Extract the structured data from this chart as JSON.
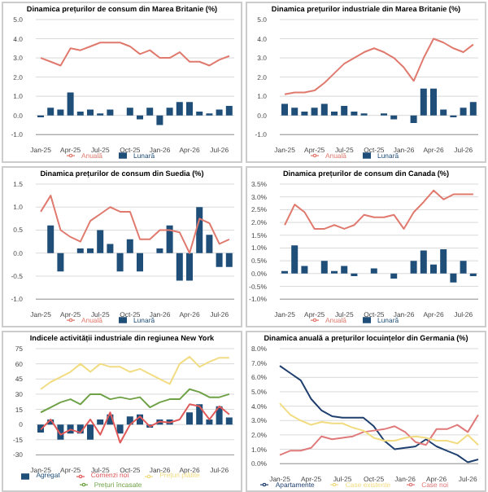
{
  "chart_data": [
    {
      "type": "bar",
      "title": "Dinamica prețurilor de consum din Marea Britanie (%)",
      "categories": [
        "Jan-25",
        null,
        null,
        "Apr-25",
        null,
        null,
        "Jul-25",
        null,
        null,
        "Oct-25",
        null,
        null,
        "Jan-26",
        null,
        null,
        "Apr-26",
        null,
        null,
        "Jul-26",
        null
      ],
      "series": [
        {
          "name": "Lunară",
          "color": "#1f4e79",
          "values": [
            -0.1,
            0.4,
            0.3,
            1.2,
            0.2,
            0.3,
            0.1,
            0.3,
            0.0,
            0.4,
            -0.2,
            0.4,
            -0.5,
            0.4,
            0.7,
            0.7,
            0.2,
            0.1,
            0.3,
            0.5
          ]
        },
        {
          "name": "Anuală",
          "type": "line",
          "color": "#e07a6e",
          "values": [
            3.0,
            2.8,
            2.6,
            3.5,
            3.4,
            3.6,
            3.8,
            3.8,
            3.8,
            3.6,
            3.2,
            3.4,
            3.0,
            3.0,
            3.3,
            2.8,
            2.8,
            2.6,
            2.9,
            3.1
          ]
        }
      ],
      "ylim": [
        -1,
        5
      ],
      "yticks": [
        {
          "value": -1,
          "label": "-1.0"
        },
        {
          "value": 0,
          "label": "0.0"
        },
        {
          "value": 1,
          "label": "1.0"
        },
        {
          "value": 2,
          "label": "2.0"
        },
        {
          "value": 3,
          "label": "3.0"
        },
        {
          "value": 4,
          "label": "4.0"
        },
        {
          "value": 5,
          "label": "5.0"
        }
      ],
      "grid": "y",
      "legend": "bottom",
      "marker": "none"
    },
    {
      "type": "bar",
      "title": "Dinamica prețurilor industriale din Marea Britanie (%)",
      "categories": [
        "Jan-25",
        null,
        null,
        "Apr-25",
        null,
        null,
        "Jul-25",
        null,
        null,
        "Oct-25",
        null,
        null,
        "Jan-26",
        null,
        null,
        "Apr-26",
        null,
        null,
        "Jul-26",
        null
      ],
      "series": [
        {
          "name": "Lunară",
          "color": "#1f4e79",
          "values": [
            0.6,
            0.4,
            0.2,
            0.4,
            0.6,
            0.2,
            0.5,
            0.2,
            0.1,
            0.0,
            0.1,
            -0.2,
            0.0,
            -0.4,
            1.4,
            1.4,
            0.3,
            -0.1,
            0.4,
            0.7
          ]
        },
        {
          "name": "Anuală",
          "type": "line",
          "color": "#e07a6e",
          "values": [
            1.1,
            1.2,
            1.2,
            1.3,
            1.7,
            2.2,
            2.7,
            3.0,
            3.3,
            3.5,
            3.3,
            3.0,
            2.5,
            1.8,
            3.0,
            4.0,
            3.8,
            3.5,
            3.3,
            3.7
          ]
        }
      ],
      "ylim": [
        -1,
        5
      ],
      "yticks": [
        {
          "value": -1,
          "label": "-1.0"
        },
        {
          "value": 0,
          "label": "0.0"
        },
        {
          "value": 1,
          "label": "1.0"
        },
        {
          "value": 2,
          "label": "2.0"
        },
        {
          "value": 3,
          "label": "3.0"
        },
        {
          "value": 4,
          "label": "4.0"
        },
        {
          "value": 5,
          "label": "5.0"
        }
      ],
      "grid": "y",
      "legend": "bottom",
      "marker": "none"
    },
    {
      "type": "bar",
      "title": "Dinamica prețurilor de consum din Suedia (%)",
      "categories": [
        "Jan-25",
        null,
        null,
        "Apr-25",
        null,
        null,
        "Jul-25",
        null,
        null,
        "Oct-25",
        null,
        null,
        "Jan-26",
        null,
        null,
        "Apr-26",
        null,
        null,
        "Jul-26",
        null
      ],
      "series": [
        {
          "name": "Lunară",
          "color": "#1f4e79",
          "values": [
            0.0,
            0.6,
            -0.4,
            0.0,
            0.1,
            0.1,
            0.5,
            0.2,
            -0.4,
            0.3,
            -0.4,
            0.0,
            0.1,
            0.6,
            -0.6,
            -0.6,
            1.0,
            0.4,
            -0.3,
            -0.3
          ]
        },
        {
          "name": "Anuală",
          "type": "line",
          "color": "#e07a6e",
          "values": [
            0.9,
            1.25,
            0.5,
            0.35,
            0.25,
            0.7,
            0.85,
            1.0,
            0.9,
            0.9,
            0.3,
            0.3,
            0.5,
            0.5,
            0.45,
            0.0,
            0.75,
            0.65,
            0.2,
            0.3
          ]
        }
      ],
      "ylim": [
        -1,
        1.5
      ],
      "yticks": [
        {
          "value": -1,
          "label": "-1.0"
        },
        {
          "value": -0.5,
          "label": "-0.5"
        },
        {
          "value": 0,
          "label": "0.0"
        },
        {
          "value": 0.5,
          "label": "0.5"
        },
        {
          "value": 1,
          "label": "1.0"
        },
        {
          "value": 1.5,
          "label": "1.5"
        }
      ],
      "grid": "y",
      "legend": "bottom",
      "marker": "none"
    },
    {
      "type": "bar",
      "title": "Dinamica prețurilor de consum din Canada (%)",
      "categories": [
        "Jan-25",
        null,
        null,
        "Apr-25",
        null,
        null,
        "Jul-25",
        null,
        null,
        "Oct-25",
        null,
        null,
        "Jan-26",
        null,
        null,
        "Apr-26",
        null,
        null,
        "Jul-26",
        null
      ],
      "series": [
        {
          "name": "Lunară",
          "color": "#1f4e79",
          "values": [
            0.1,
            1.1,
            0.3,
            0.0,
            0.5,
            0.1,
            0.3,
            -0.1,
            0.0,
            0.2,
            0.0,
            -0.2,
            0.0,
            0.5,
            0.9,
            0.35,
            0.95,
            -0.35,
            0.5,
            -0.1
          ]
        },
        {
          "name": "Anuală",
          "type": "line",
          "color": "#e07a6e",
          "values": [
            1.9,
            2.7,
            2.4,
            1.75,
            1.75,
            1.9,
            1.75,
            1.9,
            2.3,
            2.2,
            2.2,
            2.3,
            1.75,
            2.4,
            2.8,
            3.25,
            2.9,
            3.1,
            3.1,
            3.1
          ]
        }
      ],
      "ylim": [
        -1,
        3.5
      ],
      "yticks": [
        {
          "value": -1,
          "label": "-1.0%"
        },
        {
          "value": -0.5,
          "label": "-0.5%"
        },
        {
          "value": 0,
          "label": "0.0%"
        },
        {
          "value": 0.5,
          "label": "0.5%"
        },
        {
          "value": 1,
          "label": "1.0%"
        },
        {
          "value": 1.5,
          "label": "1.5%"
        },
        {
          "value": 2,
          "label": "2.0%"
        },
        {
          "value": 2.5,
          "label": "2.5%"
        },
        {
          "value": 3,
          "label": "3.0%"
        },
        {
          "value": 3.5,
          "label": "3.5%"
        }
      ],
      "grid": "y",
      "legend": "bottom",
      "marker": "none"
    },
    {
      "type": "bar",
      "title": "Indicele activității industriale din regiunea New York",
      "categories": [
        "Jan-25",
        null,
        null,
        "Apr-25",
        null,
        null,
        "Jul-25",
        null,
        null,
        "Oct-25",
        null,
        null,
        "Jan-26",
        null,
        null,
        "Apr-26",
        null,
        null,
        "Jul-26",
        null
      ],
      "series": [
        {
          "name": "Agregat",
          "color": "#1f4e79",
          "values": [
            -8,
            5,
            -15,
            -9,
            -9,
            -15,
            5,
            10,
            -9,
            8,
            10,
            -3,
            5,
            5,
            0,
            12,
            20,
            5,
            18,
            7
          ]
        },
        {
          "name": "Comenzi noi",
          "type": "line",
          "color": "#e05a5a",
          "values": [
            -5,
            5,
            -10,
            -5,
            -8,
            5,
            -10,
            12,
            -18,
            0,
            8,
            -2,
            3,
            2,
            5,
            20,
            18,
            5,
            18,
            10
          ]
        },
        {
          "name": "Prețuri plătite",
          "type": "line",
          "color": "#f2dc82",
          "values": [
            35,
            42,
            47,
            52,
            60,
            52,
            60,
            57,
            57,
            52,
            55,
            50,
            45,
            40,
            60,
            67,
            57,
            62,
            66,
            66
          ]
        },
        {
          "name": "Prețuri încasate",
          "type": "line",
          "color": "#6fa247",
          "values": [
            12,
            17,
            22,
            25,
            20,
            30,
            30,
            25,
            27,
            25,
            27,
            17,
            22,
            25,
            25,
            35,
            32,
            27,
            27,
            30
          ]
        }
      ],
      "ylim": [
        -30,
        75
      ],
      "yticks": [
        -30,
        -15,
        0,
        15,
        30,
        45,
        60,
        75
      ],
      "grid": "y",
      "legend": "bottom",
      "marker": "none"
    },
    {
      "type": "line",
      "title": "Dinamica anuală a prețurilor locuințelor din Germania (%)",
      "categories": [
        "Jan-25",
        null,
        null,
        "Apr-25",
        null,
        null,
        "Jul-25",
        null,
        null,
        "Oct-25",
        null,
        null,
        "Jan-26",
        null,
        null,
        "Apr-26",
        null,
        null,
        "Jul-26",
        null
      ],
      "series": [
        {
          "name": "Apartamente",
          "color": "#1f3f6e",
          "values": [
            6.8,
            6.3,
            5.8,
            4.5,
            3.7,
            3.3,
            3.2,
            3.2,
            3.2,
            2.6,
            1.6,
            1.0,
            1.1,
            1.2,
            1.7,
            1.2,
            0.9,
            0.6,
            0.1,
            0.3
          ]
        },
        {
          "name": "Case noi",
          "color": "#e07a7a",
          "values": [
            0.6,
            0.9,
            0.9,
            1.1,
            1.9,
            1.7,
            1.8,
            1.9,
            2.2,
            2.3,
            2.4,
            2.6,
            2.2,
            1.5,
            1.3,
            2.4,
            2.4,
            2.7,
            2.2,
            3.4
          ]
        },
        {
          "name": "Case existente",
          "color": "#f2dc82",
          "values": [
            4.2,
            3.4,
            3.0,
            2.7,
            2.9,
            2.8,
            2.8,
            2.5,
            2.3,
            1.8,
            1.6,
            1.6,
            1.8,
            1.9,
            1.8,
            1.6,
            1.6,
            1.4,
            2.0,
            1.3
          ]
        }
      ],
      "ylim": [
        0,
        8
      ],
      "yticks": [
        {
          "value": 0,
          "label": "0.0%"
        },
        {
          "value": 1,
          "label": "1.0%"
        },
        {
          "value": 2,
          "label": "2.0%"
        },
        {
          "value": 3,
          "label": "3.0%"
        },
        {
          "value": 4,
          "label": "4.0%"
        },
        {
          "value": 5,
          "label": "5.0%"
        },
        {
          "value": 6,
          "label": "6.0%"
        },
        {
          "value": 7,
          "label": "7.0%"
        },
        {
          "value": 8,
          "label": "8.0%"
        }
      ],
      "grid": "y",
      "legend": "bottom",
      "marker": "none"
    }
  ]
}
